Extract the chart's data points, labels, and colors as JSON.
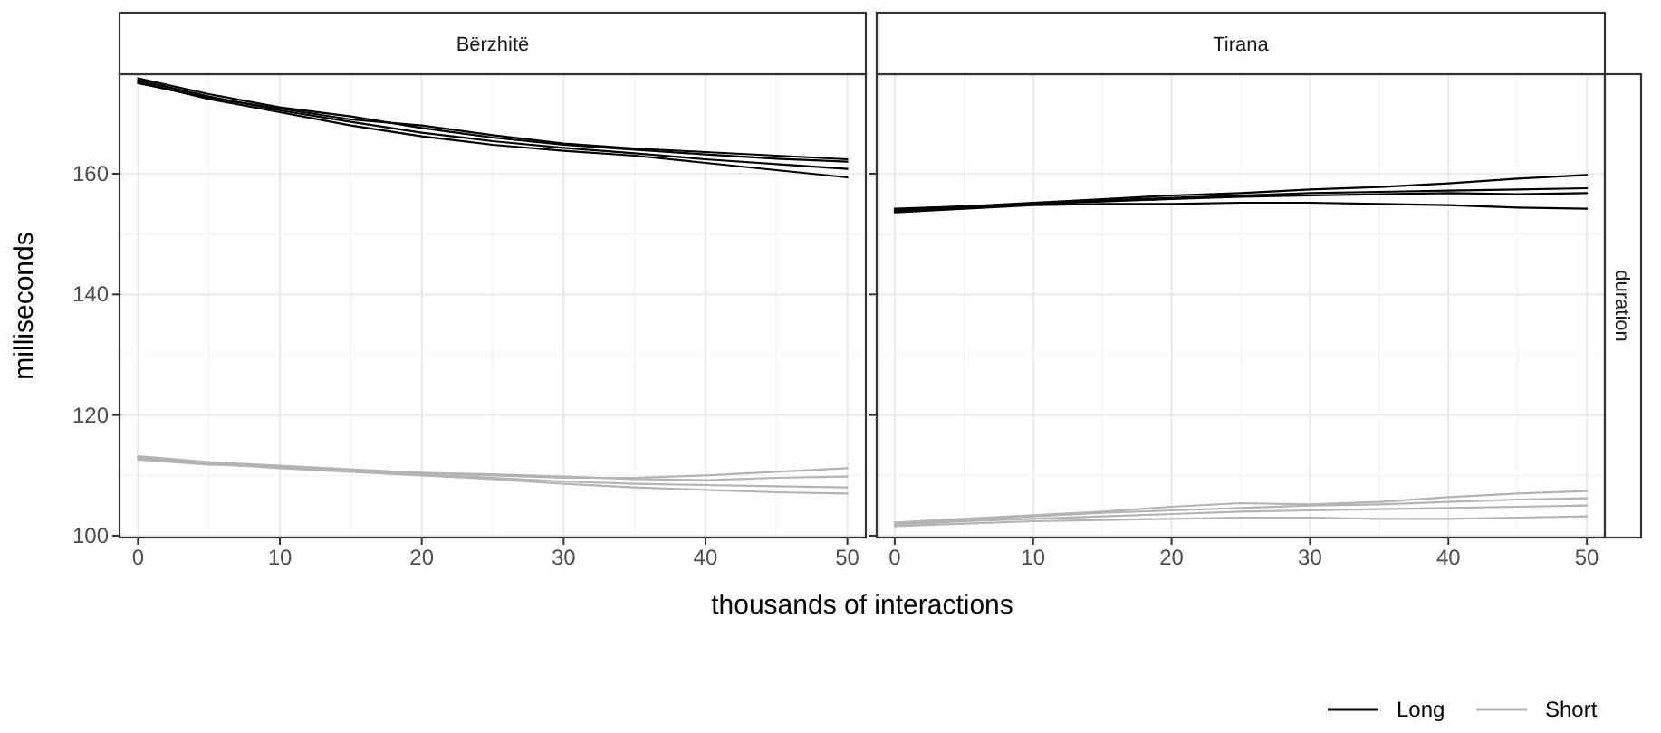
{
  "chart_data": [
    {
      "type": "line",
      "title": "Bërzhitë",
      "xlabel": "thousands of interactions",
      "ylabel": "milliseconds",
      "xlim": [
        -1.3,
        51.3
      ],
      "ylim": [
        99.7,
        176.5
      ],
      "xticks": [
        0,
        10,
        20,
        30,
        40,
        50
      ],
      "yticks": [
        100,
        120,
        140,
        160
      ],
      "grid": true,
      "x": [
        0,
        5,
        10,
        15,
        20,
        25,
        30,
        35,
        40,
        45,
        50
      ],
      "series": [
        {
          "color": "#000000",
          "values": [
            175.8,
            173.2,
            171.0,
            169.5,
            167.6,
            166.0,
            164.8,
            164.0,
            163.2,
            162.5,
            162.0
          ]
        },
        {
          "color": "#000000",
          "values": [
            175.5,
            172.8,
            170.5,
            168.6,
            166.8,
            165.4,
            164.3,
            163.4,
            162.4,
            161.6,
            160.8
          ]
        },
        {
          "color": "#000000",
          "values": [
            175.2,
            172.4,
            170.2,
            168.0,
            166.2,
            164.8,
            163.8,
            163.0,
            161.8,
            160.6,
            159.4
          ]
        },
        {
          "color": "#000000",
          "values": [
            175.0,
            172.6,
            170.8,
            169.0,
            168.0,
            166.4,
            165.0,
            164.2,
            163.6,
            163.0,
            162.4
          ]
        },
        {
          "color": "#b3b3b3",
          "values": [
            113.2,
            112.2,
            111.6,
            111.0,
            110.4,
            110.0,
            109.6,
            109.6,
            110.0,
            110.6,
            111.2
          ]
        },
        {
          "color": "#b3b3b3",
          "values": [
            113.0,
            112.0,
            111.4,
            110.8,
            110.2,
            109.6,
            109.0,
            108.6,
            108.4,
            108.2,
            108.0
          ]
        },
        {
          "color": "#b3b3b3",
          "values": [
            112.8,
            112.0,
            111.2,
            110.6,
            110.0,
            109.4,
            108.6,
            108.0,
            107.6,
            107.2,
            107.0
          ]
        },
        {
          "color": "#b3b3b3",
          "values": [
            112.6,
            111.8,
            111.4,
            110.8,
            110.4,
            110.2,
            109.8,
            109.4,
            109.2,
            109.6,
            109.8
          ]
        }
      ]
    },
    {
      "type": "line",
      "title": "Tirana",
      "annotations": [
        "duration"
      ],
      "xlim": [
        -1.3,
        51.3
      ],
      "ylim": [
        99.7,
        176.5
      ],
      "xticks": [
        0,
        10,
        20,
        30,
        40,
        50
      ],
      "yticks": [
        100,
        120,
        140,
        160
      ],
      "grid": true,
      "legend": "bottom right",
      "tick_labels": "x",
      "x": [
        0,
        5,
        10,
        15,
        20,
        25,
        30,
        35,
        40,
        45,
        50
      ],
      "series": [
        {
          "name": "Long",
          "color": "#000000",
          "values": [
            154.0,
            154.6,
            155.2,
            155.8,
            156.4,
            156.8,
            157.4,
            157.8,
            158.4,
            159.2,
            159.8
          ]
        },
        {
          "color": "#000000",
          "values": [
            153.8,
            154.4,
            155.0,
            155.6,
            156.0,
            156.4,
            156.8,
            157.0,
            157.2,
            157.4,
            157.6
          ]
        },
        {
          "color": "#000000",
          "values": [
            154.2,
            154.6,
            155.0,
            155.4,
            155.8,
            156.2,
            156.4,
            156.6,
            156.8,
            156.6,
            156.8
          ]
        },
        {
          "color": "#000000",
          "values": [
            153.6,
            154.2,
            154.8,
            155.0,
            155.0,
            155.2,
            155.2,
            155.0,
            154.8,
            154.4,
            154.2
          ]
        },
        {
          "name": "Short",
          "color": "#b3b3b3",
          "values": [
            102.2,
            102.8,
            103.4,
            104.0,
            104.8,
            105.4,
            105.2,
            105.6,
            106.4,
            107.0,
            107.4
          ]
        },
        {
          "color": "#b3b3b3",
          "values": [
            102.0,
            102.6,
            103.2,
            103.8,
            104.2,
            104.6,
            105.0,
            105.2,
            105.6,
            106.0,
            106.2
          ]
        },
        {
          "color": "#b3b3b3",
          "values": [
            101.8,
            102.4,
            102.8,
            103.2,
            103.6,
            104.0,
            104.2,
            104.4,
            104.6,
            104.8,
            105.0
          ]
        },
        {
          "color": "#b3b3b3",
          "values": [
            101.6,
            102.0,
            102.4,
            102.6,
            102.8,
            103.0,
            103.0,
            102.8,
            102.8,
            103.0,
            103.2
          ]
        }
      ]
    }
  ]
}
